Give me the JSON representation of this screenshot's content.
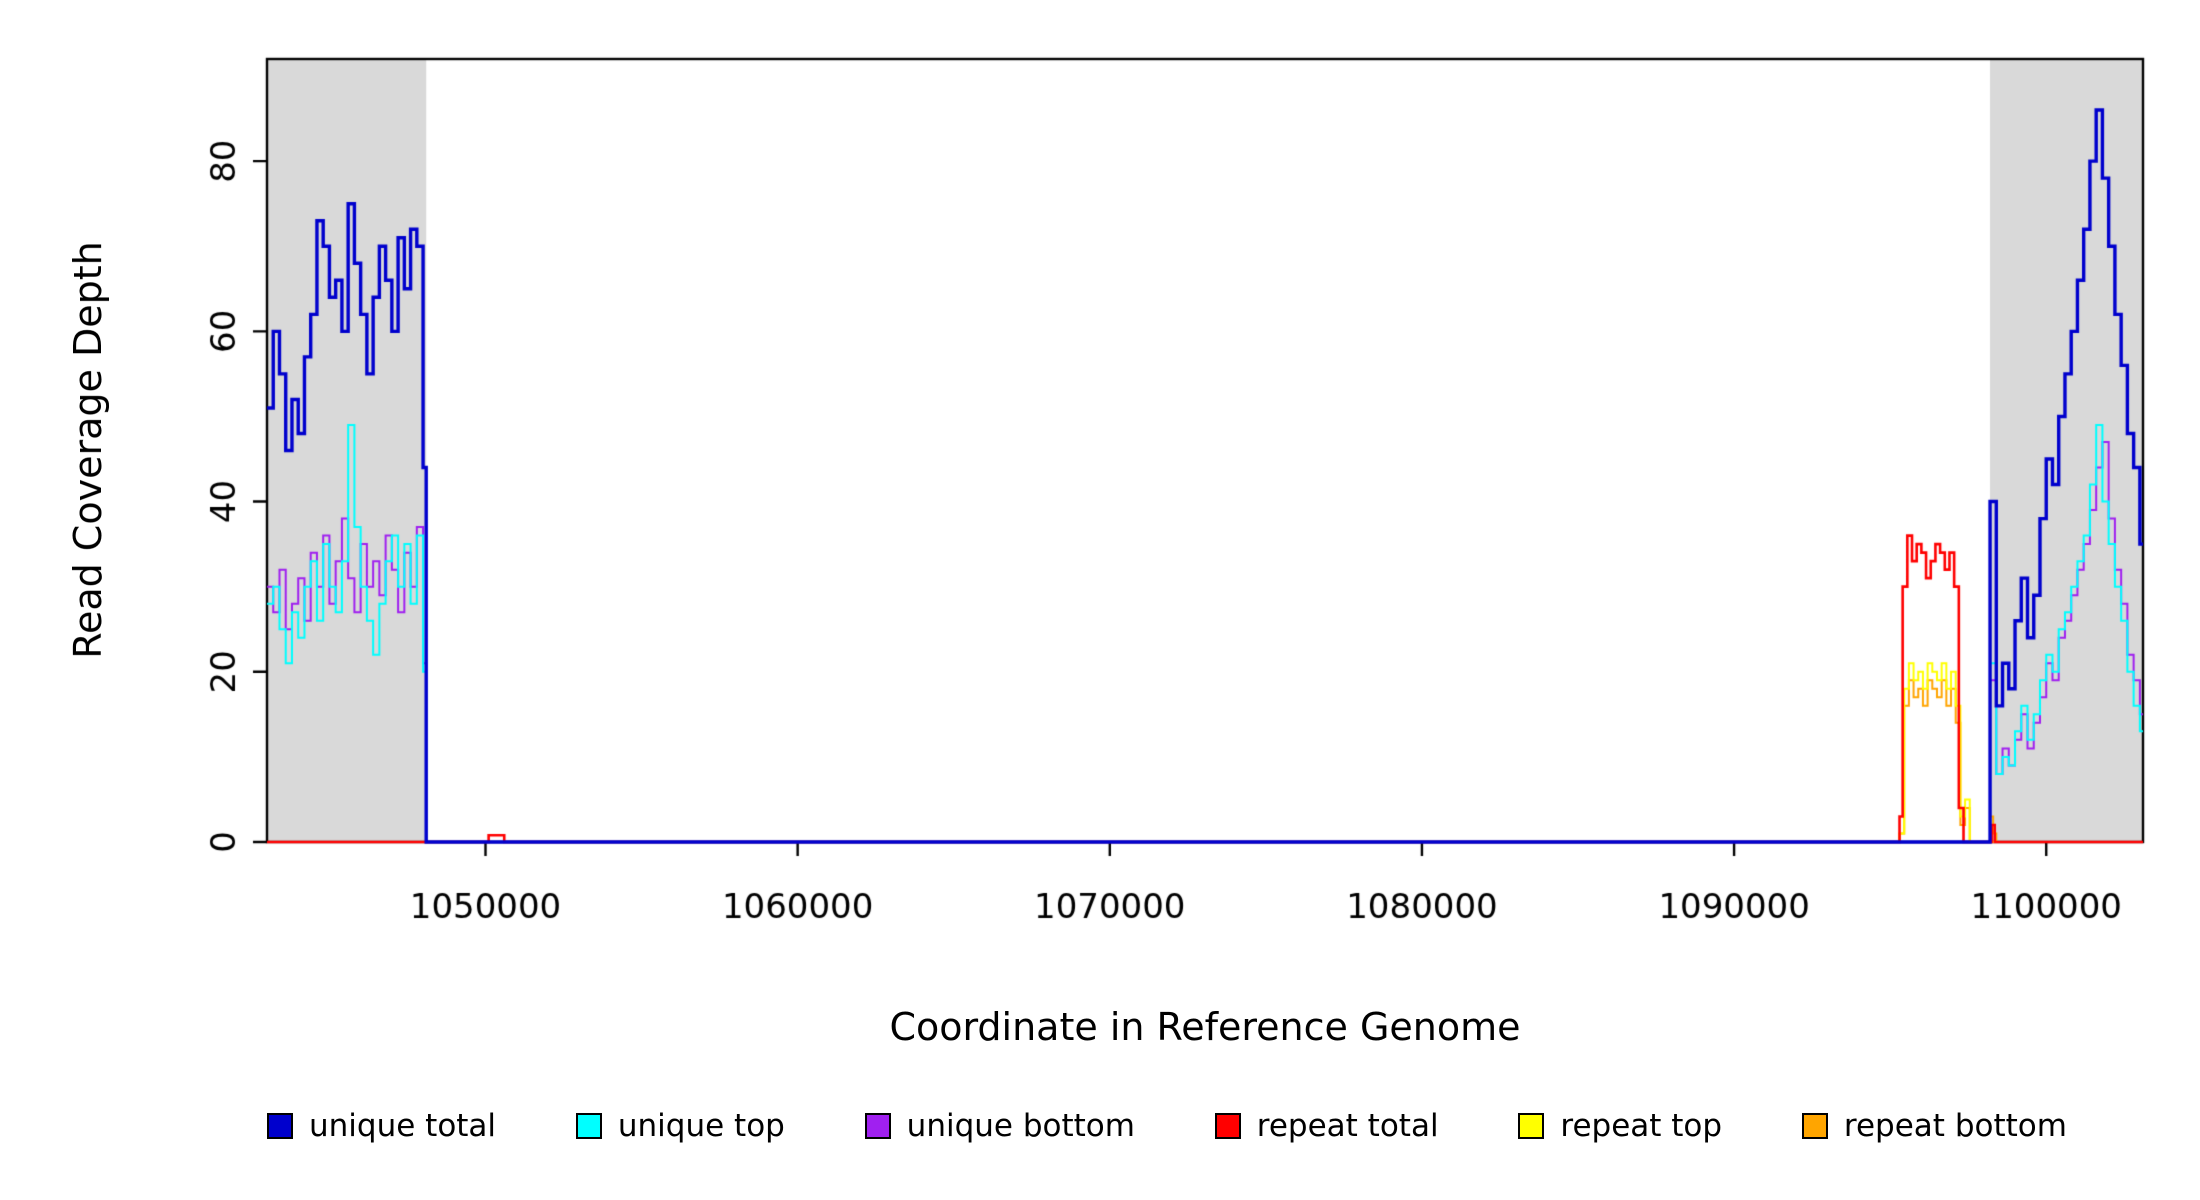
{
  "figure": {
    "background": "#ffffff",
    "plot_background": "#ffffff",
    "shaded_band_color": "#d9d9d9",
    "axis_color": "#000000"
  },
  "chart_data": {
    "type": "line",
    "step": true,
    "title": "",
    "xlabel": "Coordinate in Reference Genome",
    "ylabel": "Read Coverage Depth",
    "xlim": [
      1043000,
      1103100
    ],
    "ylim": [
      0,
      92
    ],
    "x_ticks": [
      1050000,
      1060000,
      1070000,
      1080000,
      1090000,
      1100000
    ],
    "x_tick_labels": [
      "1050000",
      "1060000",
      "1070000",
      "1080000",
      "1090000",
      "1100000"
    ],
    "y_ticks": [
      0,
      20,
      40,
      60,
      80
    ],
    "y_tick_labels": [
      "0",
      "20",
      "40",
      "60",
      "80"
    ],
    "grid": false,
    "legend_position": "bottom",
    "shaded_regions": [
      {
        "x0": 1043000,
        "x1": 1048100,
        "color": "#d9d9d9"
      },
      {
        "x0": 1098200,
        "x1": 1103100,
        "color": "#d9d9d9"
      }
    ],
    "series": [
      {
        "name": "unique total",
        "color": "#0000cd",
        "line_width": 3.4,
        "points": [
          [
            1043000,
            51
          ],
          [
            1043200,
            60
          ],
          [
            1043400,
            55
          ],
          [
            1043600,
            46
          ],
          [
            1043800,
            52
          ],
          [
            1044000,
            48
          ],
          [
            1044200,
            57
          ],
          [
            1044400,
            62
          ],
          [
            1044600,
            73
          ],
          [
            1044800,
            70
          ],
          [
            1045000,
            64
          ],
          [
            1045200,
            66
          ],
          [
            1045400,
            60
          ],
          [
            1045600,
            75
          ],
          [
            1045800,
            68
          ],
          [
            1046000,
            62
          ],
          [
            1046200,
            55
          ],
          [
            1046400,
            64
          ],
          [
            1046600,
            70
          ],
          [
            1046800,
            66
          ],
          [
            1047000,
            60
          ],
          [
            1047200,
            71
          ],
          [
            1047400,
            65
          ],
          [
            1047600,
            72
          ],
          [
            1047800,
            70
          ],
          [
            1048000,
            44
          ],
          [
            1048100,
            0
          ],
          [
            1098200,
            40
          ],
          [
            1098400,
            16
          ],
          [
            1098600,
            21
          ],
          [
            1098800,
            18
          ],
          [
            1099000,
            26
          ],
          [
            1099200,
            31
          ],
          [
            1099400,
            24
          ],
          [
            1099600,
            29
          ],
          [
            1099800,
            38
          ],
          [
            1100000,
            45
          ],
          [
            1100200,
            42
          ],
          [
            1100400,
            50
          ],
          [
            1100600,
            55
          ],
          [
            1100800,
            60
          ],
          [
            1101000,
            66
          ],
          [
            1101200,
            72
          ],
          [
            1101400,
            80
          ],
          [
            1101600,
            86
          ],
          [
            1101800,
            78
          ],
          [
            1102000,
            70
          ],
          [
            1102200,
            62
          ],
          [
            1102400,
            56
          ],
          [
            1102600,
            48
          ],
          [
            1102800,
            44
          ],
          [
            1103000,
            35
          ]
        ]
      },
      {
        "name": "unique top",
        "color": "#00ffff",
        "line_width": 2,
        "points": [
          [
            1043000,
            28
          ],
          [
            1043200,
            30
          ],
          [
            1043400,
            25
          ],
          [
            1043600,
            21
          ],
          [
            1043800,
            27
          ],
          [
            1044000,
            24
          ],
          [
            1044200,
            30
          ],
          [
            1044400,
            33
          ],
          [
            1044600,
            26
          ],
          [
            1044800,
            35
          ],
          [
            1045000,
            30
          ],
          [
            1045200,
            27
          ],
          [
            1045400,
            33
          ],
          [
            1045600,
            49
          ],
          [
            1045800,
            37
          ],
          [
            1046000,
            30
          ],
          [
            1046200,
            26
          ],
          [
            1046400,
            22
          ],
          [
            1046600,
            28
          ],
          [
            1046800,
            33
          ],
          [
            1047000,
            36
          ],
          [
            1047200,
            30
          ],
          [
            1047400,
            35
          ],
          [
            1047600,
            28
          ],
          [
            1047800,
            36
          ],
          [
            1048000,
            20
          ],
          [
            1048100,
            0
          ],
          [
            1098200,
            21
          ],
          [
            1098400,
            8
          ],
          [
            1098600,
            10
          ],
          [
            1098800,
            9
          ],
          [
            1099000,
            13
          ],
          [
            1099200,
            16
          ],
          [
            1099400,
            12
          ],
          [
            1099600,
            15
          ],
          [
            1099800,
            19
          ],
          [
            1100000,
            22
          ],
          [
            1100200,
            20
          ],
          [
            1100400,
            25
          ],
          [
            1100600,
            27
          ],
          [
            1100800,
            30
          ],
          [
            1101000,
            33
          ],
          [
            1101200,
            36
          ],
          [
            1101400,
            42
          ],
          [
            1101600,
            49
          ],
          [
            1101800,
            40
          ],
          [
            1102000,
            35
          ],
          [
            1102200,
            30
          ],
          [
            1102400,
            26
          ],
          [
            1102600,
            20
          ],
          [
            1102800,
            16
          ],
          [
            1103000,
            13
          ]
        ]
      },
      {
        "name": "unique bottom",
        "color": "#a020f0",
        "line_width": 2,
        "points": [
          [
            1043000,
            30
          ],
          [
            1043200,
            27
          ],
          [
            1043400,
            32
          ],
          [
            1043600,
            25
          ],
          [
            1043800,
            28
          ],
          [
            1044000,
            31
          ],
          [
            1044200,
            26
          ],
          [
            1044400,
            34
          ],
          [
            1044600,
            30
          ],
          [
            1044800,
            36
          ],
          [
            1045000,
            28
          ],
          [
            1045200,
            33
          ],
          [
            1045400,
            38
          ],
          [
            1045600,
            31
          ],
          [
            1045800,
            27
          ],
          [
            1046000,
            35
          ],
          [
            1046200,
            30
          ],
          [
            1046400,
            33
          ],
          [
            1046600,
            29
          ],
          [
            1046800,
            36
          ],
          [
            1047000,
            32
          ],
          [
            1047200,
            27
          ],
          [
            1047400,
            34
          ],
          [
            1047600,
            30
          ],
          [
            1047800,
            37
          ],
          [
            1048000,
            21
          ],
          [
            1048100,
            0
          ],
          [
            1098200,
            19
          ],
          [
            1098400,
            8
          ],
          [
            1098600,
            11
          ],
          [
            1098800,
            9
          ],
          [
            1099000,
            12
          ],
          [
            1099200,
            15
          ],
          [
            1099400,
            11
          ],
          [
            1099600,
            14
          ],
          [
            1099800,
            17
          ],
          [
            1100000,
            21
          ],
          [
            1100200,
            19
          ],
          [
            1100400,
            24
          ],
          [
            1100600,
            26
          ],
          [
            1100800,
            29
          ],
          [
            1101000,
            32
          ],
          [
            1101200,
            35
          ],
          [
            1101400,
            39
          ],
          [
            1101600,
            44
          ],
          [
            1101800,
            47
          ],
          [
            1102000,
            38
          ],
          [
            1102200,
            32
          ],
          [
            1102400,
            28
          ],
          [
            1102600,
            22
          ],
          [
            1102800,
            19
          ],
          [
            1103000,
            15
          ]
        ]
      },
      {
        "name": "repeat total",
        "color": "#ff0000",
        "line_width": 2.6,
        "points": [
          [
            1043000,
            0
          ],
          [
            1050100,
            0.8
          ],
          [
            1050600,
            0
          ],
          [
            1095300,
            3
          ],
          [
            1095400,
            30
          ],
          [
            1095550,
            36
          ],
          [
            1095700,
            33
          ],
          [
            1095850,
            35
          ],
          [
            1096000,
            34
          ],
          [
            1096150,
            31
          ],
          [
            1096300,
            33
          ],
          [
            1096450,
            35
          ],
          [
            1096600,
            34
          ],
          [
            1096750,
            32
          ],
          [
            1096900,
            34
          ],
          [
            1097050,
            30
          ],
          [
            1097200,
            4
          ],
          [
            1097350,
            0
          ],
          [
            1098250,
            2
          ],
          [
            1098350,
            0
          ]
        ]
      },
      {
        "name": "repeat top",
        "color": "#ffff00",
        "line_width": 2,
        "points": [
          [
            1043000,
            0
          ],
          [
            1095300,
            1
          ],
          [
            1095450,
            18
          ],
          [
            1095600,
            21
          ],
          [
            1095750,
            19
          ],
          [
            1095900,
            20
          ],
          [
            1096050,
            18
          ],
          [
            1096200,
            21
          ],
          [
            1096350,
            20
          ],
          [
            1096500,
            19
          ],
          [
            1096650,
            21
          ],
          [
            1096800,
            18
          ],
          [
            1096950,
            20
          ],
          [
            1097100,
            16
          ],
          [
            1097250,
            3
          ],
          [
            1097400,
            5
          ],
          [
            1097550,
            0
          ]
        ]
      },
      {
        "name": "repeat bottom",
        "color": "#ffa500",
        "line_width": 2,
        "points": [
          [
            1043000,
            0
          ],
          [
            1095300,
            1
          ],
          [
            1095450,
            16
          ],
          [
            1095600,
            19
          ],
          [
            1095750,
            17
          ],
          [
            1095900,
            18
          ],
          [
            1096050,
            16
          ],
          [
            1096200,
            19
          ],
          [
            1096350,
            18
          ],
          [
            1096500,
            17
          ],
          [
            1096650,
            19
          ],
          [
            1096800,
            16
          ],
          [
            1096950,
            18
          ],
          [
            1097100,
            14
          ],
          [
            1097250,
            2
          ],
          [
            1097400,
            4
          ],
          [
            1097550,
            0
          ],
          [
            1098200,
            3
          ],
          [
            1098300,
            1
          ],
          [
            1098400,
            0
          ]
        ]
      }
    ]
  }
}
